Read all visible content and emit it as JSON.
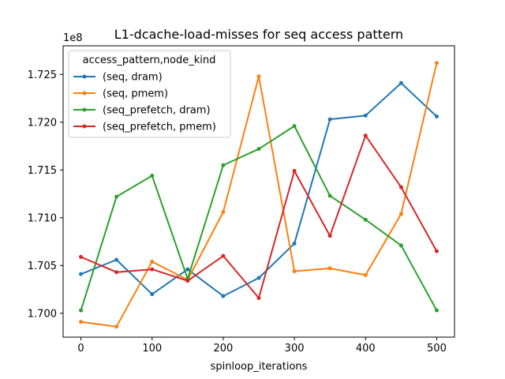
{
  "chart_data": {
    "type": "line",
    "title": "L1-dcache-load-misses for seq access pattern",
    "xlabel": "spinloop_iterations",
    "ylabel": "",
    "y_offset_label": "1e8",
    "xlim": [
      -25,
      525
    ],
    "ylim": [
      1.6975,
      1.728
    ],
    "x_ticks": [
      0,
      100,
      200,
      300,
      400,
      500
    ],
    "x_tick_labels": [
      "0",
      "100",
      "200",
      "300",
      "400",
      "500"
    ],
    "y_ticks": [
      1.7,
      1.705,
      1.71,
      1.715,
      1.72,
      1.725
    ],
    "y_tick_labels": [
      "1.700",
      "1.705",
      "1.710",
      "1.715",
      "1.720",
      "1.725"
    ],
    "grid": false,
    "legend": {
      "title": "access_pattern,node_kind",
      "placement": "upper-left"
    },
    "x": [
      0,
      50,
      100,
      150,
      200,
      250,
      300,
      350,
      400,
      450,
      500
    ],
    "series": [
      {
        "name": "(seq, dram)",
        "color": "#1f77b4",
        "values": [
          1.7041,
          1.7056,
          1.702,
          1.7046,
          1.7018,
          1.7037,
          1.7073,
          1.7203,
          1.7207,
          1.7241,
          1.7206
        ]
      },
      {
        "name": "(seq, pmem)",
        "color": "#ff7f0e",
        "values": [
          1.6991,
          1.6986,
          1.7054,
          1.7035,
          1.7106,
          1.7248,
          1.7044,
          1.7047,
          1.704,
          1.7104,
          1.7262
        ]
      },
      {
        "name": "(seq_prefetch, dram)",
        "color": "#2ca02c",
        "values": [
          1.7003,
          1.7122,
          1.7144,
          1.7036,
          1.7155,
          1.7172,
          1.7196,
          1.7123,
          1.7098,
          1.7071,
          1.7003
        ]
      },
      {
        "name": "(seq_prefetch, pmem)",
        "color": "#d62728",
        "values": [
          1.7059,
          1.7043,
          1.7046,
          1.7034,
          1.706,
          1.7016,
          1.7149,
          1.7081,
          1.7186,
          1.7132,
          1.7065
        ]
      }
    ]
  }
}
